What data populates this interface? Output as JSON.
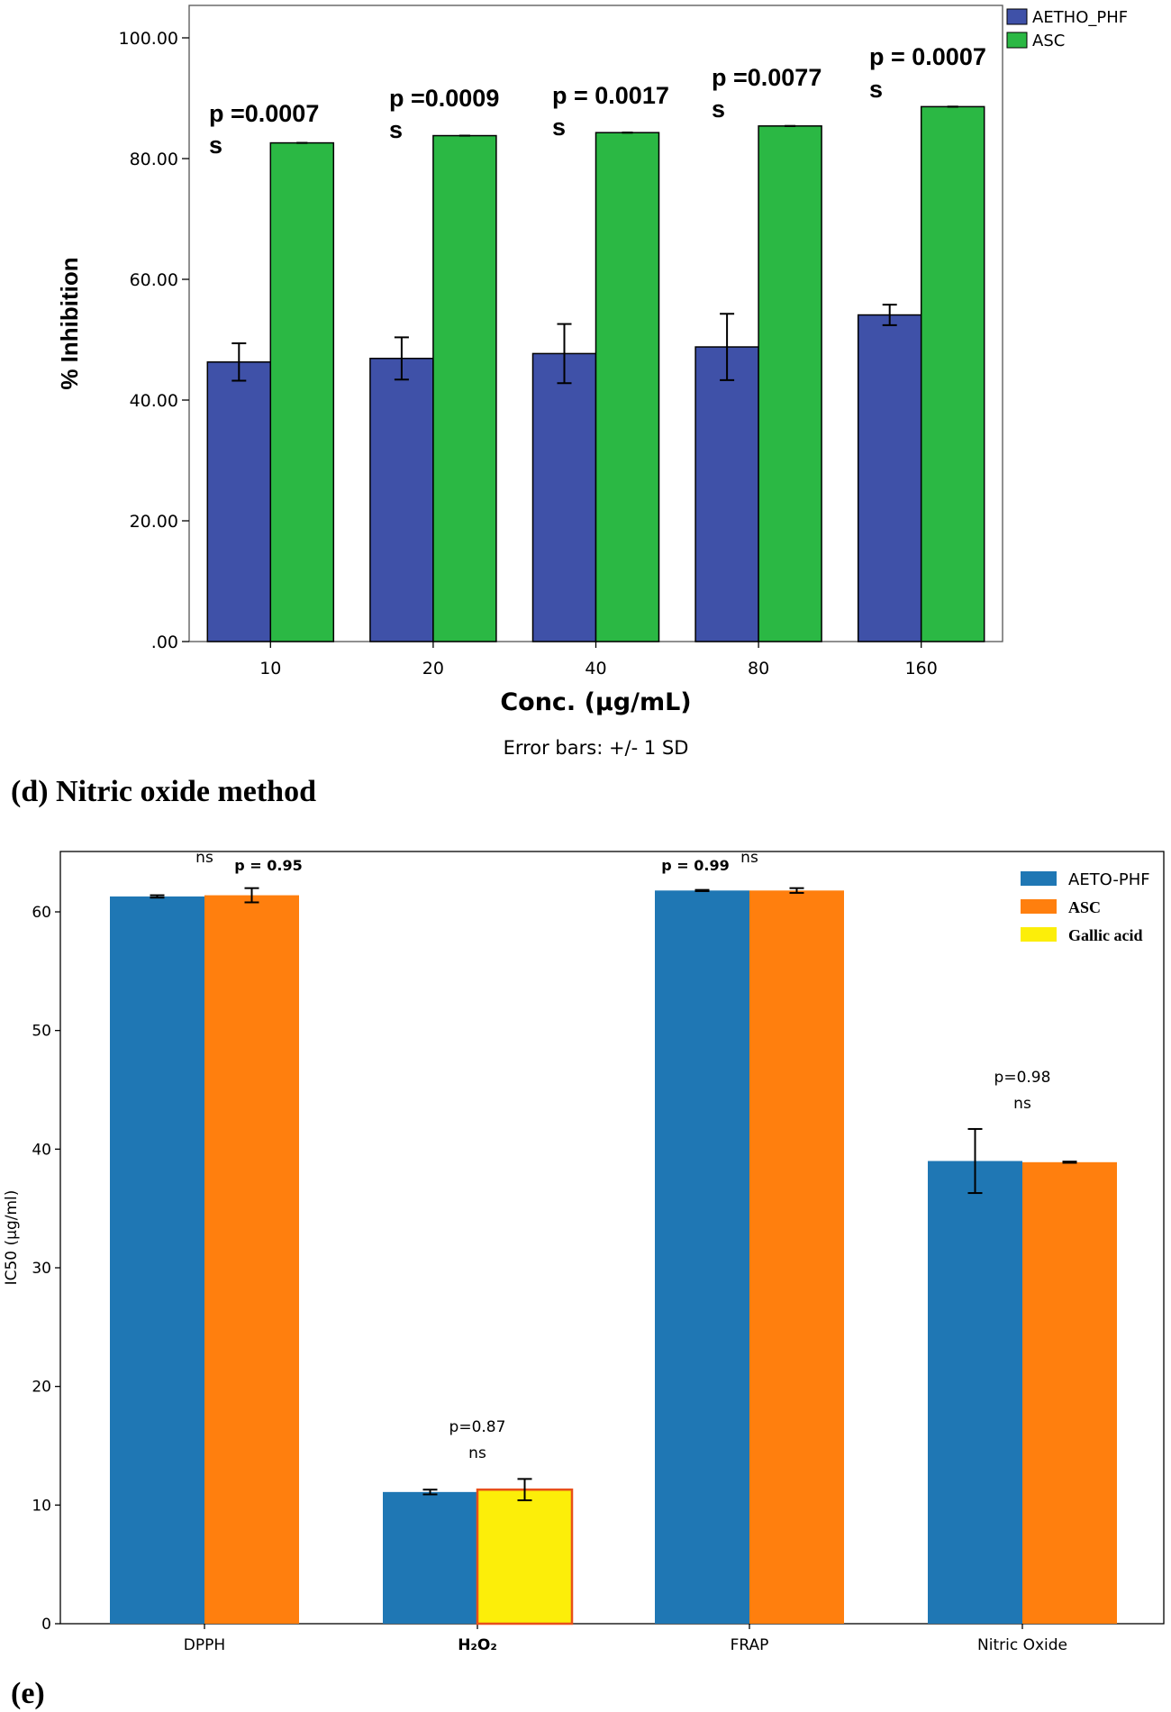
{
  "captions": {
    "d": "(d) Nitric oxide method",
    "e": "(e)"
  },
  "chart_data": [
    {
      "type": "bar",
      "title": "",
      "xlabel": "Conc. (µg/mL)",
      "ylabel": "% Inhibition",
      "note": "Error bars: +/- 1 SD",
      "categories": [
        "10",
        "20",
        "40",
        "80",
        "160"
      ],
      "ylim": [
        0,
        100
      ],
      "yticks": [
        0,
        20,
        40,
        60,
        80,
        100
      ],
      "ytick_labels": [
        ".00",
        "20.00",
        "40.00",
        "60.00",
        "80.00",
        "100.00"
      ],
      "legend_position": "top-right",
      "series": [
        {
          "name": "AETHO_PHF",
          "color": "#3f51a8",
          "values": [
            46.3,
            46.9,
            47.7,
            48.8,
            54.1
          ],
          "errors": [
            3.1,
            3.5,
            4.9,
            5.5,
            1.7
          ]
        },
        {
          "name": "ASC",
          "color": "#2bb844",
          "values": [
            82.6,
            83.8,
            84.3,
            85.4,
            88.6
          ],
          "errors": [
            0,
            0,
            0,
            0,
            0
          ]
        }
      ],
      "annotations": [
        {
          "category": "10",
          "p": "p =0.0007",
          "sig": "s"
        },
        {
          "category": "20",
          "p": "p =0.0009",
          "sig": "s"
        },
        {
          "category": "40",
          "p": "p = 0.0017",
          "sig": "s"
        },
        {
          "category": "80",
          "p": "p =0.0077",
          "sig": "s"
        },
        {
          "category": "160",
          "p": "p = 0.0007",
          "sig": "s"
        }
      ]
    },
    {
      "type": "bar",
      "title": "",
      "xlabel": "",
      "ylabel": "IC50 (µg/ml)",
      "categories": [
        "DPPH",
        "H₂O₂",
        "FRAP",
        "Nitric Oxide"
      ],
      "ylim": [
        0,
        65
      ],
      "yticks": [
        0,
        10,
        20,
        30,
        40,
        50,
        60
      ],
      "legend_position": "top-right",
      "legend": [
        {
          "name": "AETO-PHF",
          "color": "#1f77b4"
        },
        {
          "name": "ASC",
          "color": "#ff7f0e"
        },
        {
          "name": "Gallic acid",
          "color": "#fcee09"
        }
      ],
      "series": [
        {
          "name": "AETO-PHF",
          "values": [
            61.3,
            11.1,
            61.8,
            39.0
          ],
          "errors": [
            0.1,
            0.2,
            0.05,
            2.7
          ]
        },
        {
          "name": "ASC / Gallic acid",
          "values": [
            61.4,
            11.3,
            61.8,
            38.9
          ],
          "errors": [
            0.6,
            0.9,
            0.2,
            0.05
          ],
          "colors": [
            "#ff7f0e",
            "#fcee09",
            "#ff7f0e",
            "#ff7f0e"
          ]
        }
      ],
      "annotations": [
        {
          "category": "DPPH",
          "p": "p = 0.95",
          "sig": "ns",
          "layout": "split"
        },
        {
          "category": "H₂O₂",
          "p": "p=0.87",
          "sig": "ns",
          "layout": "stack"
        },
        {
          "category": "FRAP",
          "p": "p = 0.99",
          "sig": "ns",
          "layout": "split"
        },
        {
          "category": "Nitric Oxide",
          "p": "p=0.98",
          "sig": "ns",
          "layout": "stack"
        }
      ]
    }
  ]
}
